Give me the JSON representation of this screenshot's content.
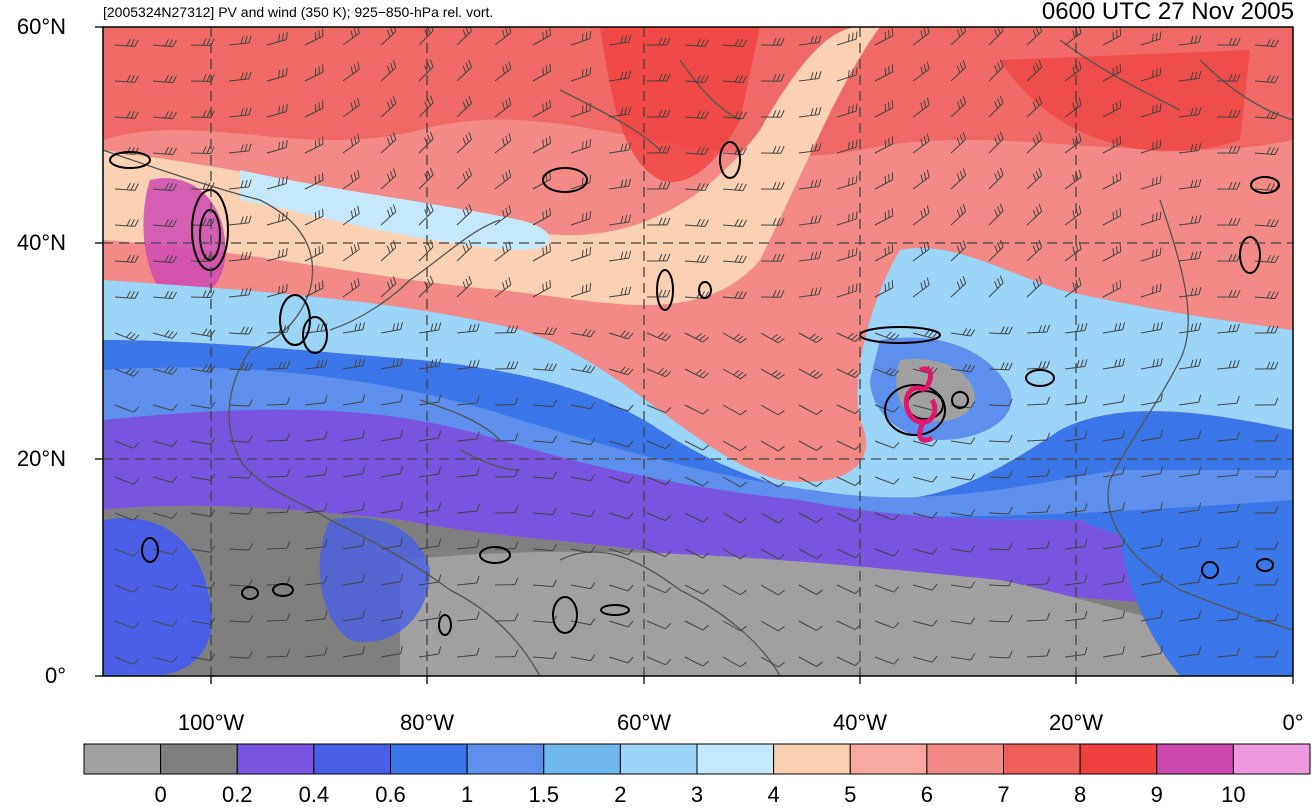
{
  "title": {
    "left": "[2005324N27312] PV and wind (350 K); 925−850-hPa rel. vort.",
    "right": "0600 UTC 27 Nov 2005"
  },
  "axes": {
    "lat_labels": [
      {
        "value": 60,
        "text": "60°N"
      },
      {
        "value": 40,
        "text": "40°N"
      },
      {
        "value": 20,
        "text": "20°N"
      },
      {
        "value": 0,
        "text": "0°"
      }
    ],
    "lon_labels": [
      {
        "value": -100,
        "text": "100°W"
      },
      {
        "value": -80,
        "text": "80°W"
      },
      {
        "value": -60,
        "text": "60°W"
      },
      {
        "value": -40,
        "text": "40°W"
      },
      {
        "value": -20,
        "text": "20°W"
      },
      {
        "value": 0,
        "text": "0°"
      }
    ],
    "lon_range": [
      -110,
      0
    ],
    "lat_range": [
      0,
      60
    ],
    "grid": "dashed 20° lines"
  },
  "colorbar": {
    "colors": [
      "#a0a0a0",
      "#7f7f7f",
      "#7a55e0",
      "#4b5fe6",
      "#3a78ea",
      "#5c90ec",
      "#6fb9ee",
      "#9ad4f6",
      "#c6e8fb",
      "#fbd1b4",
      "#f8a8a0",
      "#f38a88",
      "#ef5f5a",
      "#f0413e",
      "#cc4ab0",
      "#ee99dd"
    ],
    "labels": [
      "0",
      "0.2",
      "0.4",
      "0.6",
      "1",
      "1.5",
      "2",
      "3",
      "4",
      "5",
      "6",
      "7",
      "8",
      "9",
      "10"
    ]
  },
  "storm": {
    "name": "cyclone-symbol",
    "lat": 25.5,
    "lon": -34.5,
    "color": "#e0196e"
  }
}
